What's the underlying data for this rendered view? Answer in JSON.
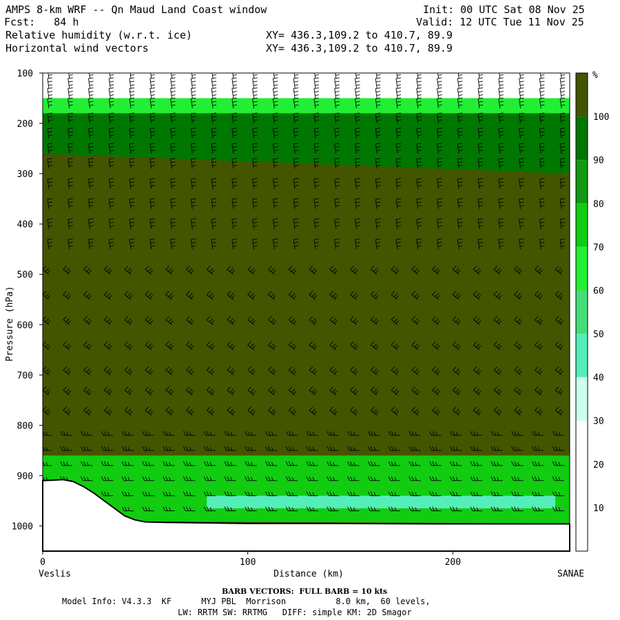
{
  "header": {
    "title": "AMPS 8-km WRF -- Qn Maud Land Coast window",
    "fcst": "Fcst:   84 h",
    "init": "Init: 00 UTC Sat 08 Nov 25",
    "valid": "Valid: 12 UTC Tue 11 Nov 25",
    "field1": "Relative humidity (w.r.t. ice)",
    "field2": "Horizontal wind vectors",
    "xy1": "XY= 436.3,109.2 to 410.7, 89.9",
    "xy2": "XY= 436.3,109.2 to 410.7, 89.9"
  },
  "footer": {
    "barb": "BARB VECTORS:  FULL BARB = 10 kts",
    "model_line1": "Model Info: V4.3.3  KF      MYJ PBL  Morrison          8.0 km,  60 levels,",
    "model_line2": "LW: RRTM SW: RRTMG   DIFF: simple KM: 2D Smagor"
  },
  "chart_data": {
    "type": "heatmap",
    "title": "Relative humidity (w.r.t. ice)",
    "xlabel": "Distance (km)",
    "ylabel": "Pressure (hPa)",
    "x_start_label": "Veslis",
    "x_end_label": "SANAE",
    "xlim": [
      0,
      257
    ],
    "ylim": [
      1050,
      100
    ],
    "x_ticks": [
      0,
      100,
      200
    ],
    "y_ticks": [
      100,
      200,
      300,
      400,
      500,
      600,
      700,
      800,
      900,
      1000
    ],
    "colorbar": {
      "unit": "%",
      "levels": [
        10,
        20,
        30,
        40,
        50,
        60,
        70,
        80,
        90,
        100
      ],
      "colors": [
        "#ffffff",
        "#ffffff",
        "#ffffff",
        "#ccffee",
        "#55eebb",
        "#44dd77",
        "#22ee33",
        "#11cc11",
        "#119911",
        "#007700",
        "#445500"
      ]
    },
    "surface_pressure": [
      [
        0,
        910
      ],
      [
        5,
        909
      ],
      [
        10,
        908
      ],
      [
        15,
        912
      ],
      [
        20,
        922
      ],
      [
        25,
        935
      ],
      [
        30,
        950
      ],
      [
        35,
        965
      ],
      [
        40,
        980
      ],
      [
        45,
        988
      ],
      [
        50,
        992
      ],
      [
        60,
        993
      ],
      [
        80,
        994
      ],
      [
        100,
        995
      ],
      [
        140,
        995
      ],
      [
        200,
        996
      ],
      [
        257,
        996
      ]
    ],
    "rh_bands": [
      {
        "level": "very_dry",
        "color": "#ffffff",
        "top": [
          [
            0,
            100
          ],
          [
            257,
            100
          ]
        ],
        "bottom": [
          [
            0,
            150
          ],
          [
            257,
            150
          ]
        ]
      },
      {
        "level": "moist_upper",
        "color": "#22ee33",
        "top": [
          [
            0,
            150
          ],
          [
            257,
            150
          ]
        ],
        "bottom": [
          [
            0,
            180
          ],
          [
            257,
            180
          ]
        ]
      },
      {
        "level": "near_saturation",
        "color": "#007700",
        "top": [
          [
            0,
            180
          ],
          [
            257,
            180
          ]
        ],
        "bottom": [
          [
            0,
            260
          ],
          [
            50,
            280
          ],
          [
            100,
            300
          ],
          [
            140,
            330
          ],
          [
            200,
            310
          ],
          [
            257,
            300
          ]
        ]
      },
      {
        "level": "saturated",
        "color": "#445500",
        "top": [
          [
            0,
            260
          ],
          [
            257,
            300
          ]
        ],
        "bottom": [
          [
            0,
            860
          ],
          [
            257,
            880
          ]
        ]
      },
      {
        "level": "moist_lower",
        "color": "#11cc11",
        "top": [
          [
            0,
            860
          ],
          [
            257,
            860
          ]
        ],
        "bottom": [
          [
            0,
            990
          ],
          [
            257,
            995
          ]
        ]
      },
      {
        "level": "dry_lower",
        "color": "#55eebb",
        "top": [
          [
            80,
            940
          ],
          [
            250,
            940
          ]
        ],
        "bottom": [
          [
            80,
            965
          ],
          [
            250,
            965
          ]
        ]
      }
    ],
    "wind_barb_levels": [
      110,
      130,
      150,
      170,
      200,
      230,
      260,
      290,
      330,
      370,
      410,
      450,
      500,
      550,
      600,
      650,
      700,
      740,
      780,
      820,
      850,
      880,
      910,
      940,
      970
    ],
    "wind_barb_columns": [
      3,
      13,
      23,
      33,
      43,
      53,
      63,
      73,
      83,
      93,
      103,
      113,
      123,
      133,
      143,
      153,
      163,
      173,
      183,
      193,
      203,
      213,
      223,
      233,
      243,
      253
    ]
  }
}
